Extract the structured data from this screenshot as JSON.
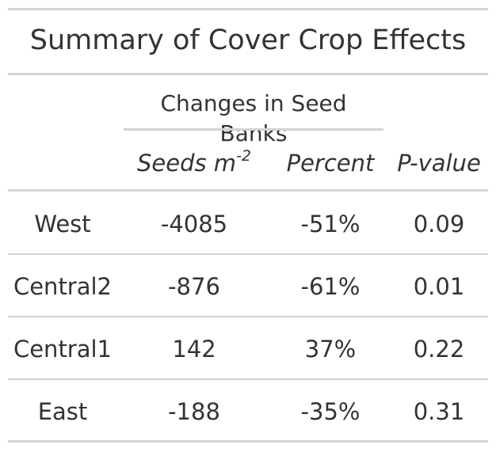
{
  "table": {
    "title": "Summary of Cover Crop Effects",
    "spanner": "Changes in Seed Banks",
    "columns": {
      "seeds_base": "Seeds m",
      "seeds_exp": "-2",
      "percent": "Percent",
      "pvalue": "P-value"
    },
    "rows": [
      {
        "site": "West",
        "seeds": "-4085",
        "percent": "-51%",
        "pvalue": "0.09"
      },
      {
        "site": "Central2",
        "seeds": "-876",
        "percent": "-61%",
        "pvalue": "0.01"
      },
      {
        "site": "Central1",
        "seeds": "142",
        "percent": "37%",
        "pvalue": "0.22"
      },
      {
        "site": "East",
        "seeds": "-188",
        "percent": "-35%",
        "pvalue": "0.31"
      }
    ]
  }
}
